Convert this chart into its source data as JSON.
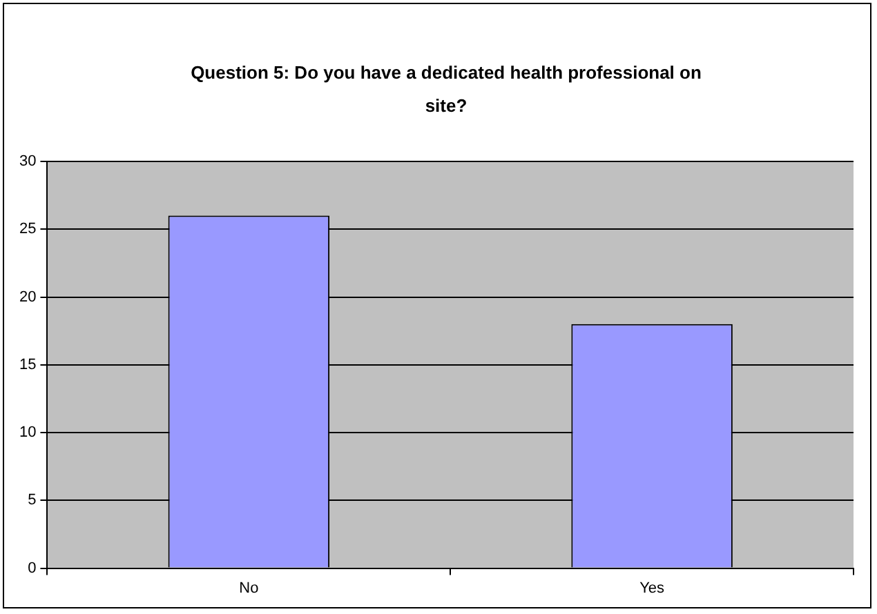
{
  "chart_data": {
    "type": "bar",
    "title": "Question 5: Do you have a dedicated health professional on site?",
    "categories": [
      "No",
      "Yes"
    ],
    "values": [
      26,
      18
    ],
    "color": "#9999ff",
    "ylim": [
      0,
      30
    ],
    "yticks": [
      0,
      5,
      10,
      15,
      20,
      25,
      30
    ],
    "grid": "y",
    "legend": false
  }
}
